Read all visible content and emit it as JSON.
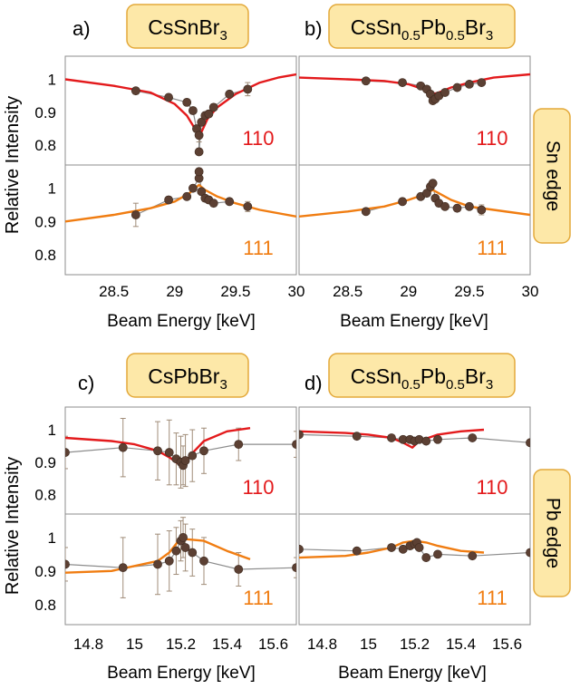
{
  "figure": {
    "ylabel": "Relative Intensity",
    "xlabel": "Beam Energy [keV]",
    "colors": {
      "series_110": "#e31a1c",
      "series_111": "#f07d12",
      "points": "#5c4033",
      "pointline": "#8c8c8c",
      "errbar": "#a08c78",
      "tagfill": "#fde8a8",
      "tagborder": "#e3a93a"
    },
    "side_tags": [
      {
        "text": "Sn edge"
      },
      {
        "text": "Pb edge"
      }
    ]
  },
  "chart_data": [
    {
      "type": "line",
      "panel": "a)",
      "title": {
        "base": "CsSn",
        "parts": [
          [
            "Br",
            "3"
          ]
        ]
      },
      "edge": "Sn edge",
      "xlim": [
        28.1,
        30
      ],
      "xticks": [
        "28.5",
        "29",
        "29.5",
        "30"
      ],
      "subplots": [
        {
          "reflection": "110",
          "ylim": [
            0.74,
            1.07
          ],
          "yticks": [
            "1",
            "0.9",
            "0.8"
          ],
          "points": [
            [
              28.68,
              0.965
            ],
            [
              28.95,
              0.945
            ],
            [
              29.1,
              0.93
            ],
            [
              29.15,
              0.905
            ],
            [
              29.18,
              0.85
            ],
            [
              29.2,
              0.83
            ],
            [
              29.2,
              0.78
            ],
            [
              29.22,
              0.87
            ],
            [
              29.25,
              0.89
            ],
            [
              29.28,
              0.895
            ],
            [
              29.32,
              0.915
            ],
            [
              29.45,
              0.955
            ],
            [
              29.6,
              0.97
            ]
          ],
          "errors": [
            0.01,
            0.01,
            0.01,
            0.01,
            0.01,
            0.02,
            0.01,
            0.01,
            0.01,
            0.01,
            0.01,
            0.01,
            0.02
          ],
          "curve": [
            [
              28.1,
              1.0
            ],
            [
              28.5,
              0.98
            ],
            [
              28.8,
              0.96
            ],
            [
              29.0,
              0.925
            ],
            [
              29.1,
              0.89
            ],
            [
              29.15,
              0.86
            ],
            [
              29.19,
              0.83
            ],
            [
              29.2,
              0.82
            ],
            [
              29.22,
              0.84
            ],
            [
              29.27,
              0.88
            ],
            [
              29.35,
              0.915
            ],
            [
              29.5,
              0.955
            ],
            [
              29.7,
              0.99
            ],
            [
              29.85,
              1.005
            ],
            [
              30.0,
              1.015
            ]
          ]
        },
        {
          "reflection": "111",
          "ylim": [
            0.74,
            1.07
          ],
          "yticks": [
            "1",
            "0.9",
            "0.8"
          ],
          "points": [
            [
              28.68,
              0.92
            ],
            [
              28.95,
              0.965
            ],
            [
              29.1,
              0.975
            ],
            [
              29.15,
              1.0
            ],
            [
              29.2,
              1.03
            ],
            [
              29.2,
              1.05
            ],
            [
              29.22,
              0.99
            ],
            [
              29.25,
              0.97
            ],
            [
              29.28,
              0.965
            ],
            [
              29.32,
              0.955
            ],
            [
              29.45,
              0.96
            ],
            [
              29.6,
              0.945
            ]
          ],
          "errors": [
            0.035,
            0.01,
            0.01,
            0.01,
            0.01,
            0.01,
            0.01,
            0.01,
            0.01,
            0.01,
            0.01,
            0.015
          ],
          "curve": [
            [
              28.1,
              0.9
            ],
            [
              28.5,
              0.92
            ],
            [
              28.8,
              0.94
            ],
            [
              29.0,
              0.96
            ],
            [
              29.12,
              0.985
            ],
            [
              29.2,
              1.01
            ],
            [
              29.25,
              0.995
            ],
            [
              29.35,
              0.975
            ],
            [
              29.5,
              0.955
            ],
            [
              29.7,
              0.935
            ],
            [
              30.0,
              0.915
            ]
          ]
        }
      ]
    },
    {
      "type": "line",
      "panel": "b)",
      "title": {
        "base": "CsSn",
        "parts": [
          [
            "",
            "0.5"
          ],
          [
            "Pb",
            "0.5"
          ],
          [
            "Br",
            "3"
          ]
        ]
      },
      "edge": "Sn edge",
      "xlim": [
        28.1,
        30
      ],
      "xticks": [
        "28.5",
        "29",
        "29.5",
        "30"
      ],
      "subplots": [
        {
          "reflection": "110",
          "ylim": [
            0.74,
            1.07
          ],
          "yticks": [],
          "points": [
            [
              28.65,
              0.995
            ],
            [
              28.95,
              0.99
            ],
            [
              29.1,
              0.98
            ],
            [
              29.15,
              0.97
            ],
            [
              29.18,
              0.955
            ],
            [
              29.2,
              0.935
            ],
            [
              29.22,
              0.94
            ],
            [
              29.25,
              0.95
            ],
            [
              29.3,
              0.96
            ],
            [
              29.4,
              0.975
            ],
            [
              29.5,
              0.985
            ],
            [
              29.6,
              0.99
            ]
          ],
          "errors": [
            0.005,
            0.005,
            0.005,
            0.005,
            0.005,
            0.005,
            0.005,
            0.005,
            0.005,
            0.005,
            0.005,
            0.005
          ],
          "curve": [
            [
              28.1,
              1.005
            ],
            [
              28.5,
              1.0
            ],
            [
              28.8,
              0.995
            ],
            [
              29.0,
              0.985
            ],
            [
              29.12,
              0.97
            ],
            [
              29.2,
              0.955
            ],
            [
              29.25,
              0.96
            ],
            [
              29.35,
              0.975
            ],
            [
              29.5,
              0.99
            ],
            [
              29.7,
              1.005
            ],
            [
              30.0,
              1.015
            ]
          ]
        },
        {
          "reflection": "111",
          "ylim": [
            0.74,
            1.07
          ],
          "yticks": [],
          "points": [
            [
              28.65,
              0.93
            ],
            [
              28.95,
              0.96
            ],
            [
              29.1,
              0.975
            ],
            [
              29.15,
              0.985
            ],
            [
              29.18,
              1.005
            ],
            [
              29.2,
              1.015
            ],
            [
              29.22,
              0.97
            ],
            [
              29.25,
              0.955
            ],
            [
              29.3,
              0.945
            ],
            [
              29.4,
              0.94
            ],
            [
              29.5,
              0.945
            ],
            [
              29.6,
              0.935
            ]
          ],
          "errors": [
            0.01,
            0.01,
            0.01,
            0.01,
            0.01,
            0.01,
            0.01,
            0.01,
            0.01,
            0.01,
            0.01,
            0.015
          ],
          "curve": [
            [
              28.1,
              0.915
            ],
            [
              28.5,
              0.93
            ],
            [
              28.8,
              0.945
            ],
            [
              29.0,
              0.965
            ],
            [
              29.12,
              0.98
            ],
            [
              29.2,
              0.995
            ],
            [
              29.25,
              0.985
            ],
            [
              29.35,
              0.965
            ],
            [
              29.5,
              0.945
            ],
            [
              29.7,
              0.935
            ],
            [
              30.0,
              0.92
            ]
          ]
        }
      ]
    },
    {
      "type": "line",
      "panel": "c)",
      "title": {
        "base": "CsPb",
        "parts": [
          [
            "Br",
            "3"
          ]
        ]
      },
      "edge": "Pb edge",
      "xlim": [
        14.7,
        15.7
      ],
      "xticks": [
        "14.8",
        "15",
        "15.2",
        "15.4",
        "15.6"
      ],
      "subplots": [
        {
          "reflection": "110",
          "ylim": [
            0.74,
            1.07
          ],
          "yticks": [
            "1",
            "0.9",
            "0.8"
          ],
          "points": [
            [
              14.7,
              0.93
            ],
            [
              14.95,
              0.945
            ],
            [
              15.1,
              0.935
            ],
            [
              15.15,
              0.93
            ],
            [
              15.18,
              0.91
            ],
            [
              15.2,
              0.9
            ],
            [
              15.21,
              0.89
            ],
            [
              15.22,
              0.905
            ],
            [
              15.25,
              0.92
            ],
            [
              15.3,
              0.935
            ],
            [
              15.45,
              0.955
            ],
            [
              15.7,
              0.955
            ]
          ],
          "errors": [
            0.05,
            0.09,
            0.09,
            0.1,
            0.08,
            0.08,
            0.06,
            0.08,
            0.08,
            0.07,
            0.05,
            0.04
          ],
          "curve": [
            [
              14.7,
              0.975
            ],
            [
              14.9,
              0.965
            ],
            [
              15.0,
              0.955
            ],
            [
              15.1,
              0.935
            ],
            [
              15.15,
              0.915
            ],
            [
              15.19,
              0.895
            ],
            [
              15.21,
              0.885
            ],
            [
              15.24,
              0.92
            ],
            [
              15.3,
              0.965
            ],
            [
              15.4,
              0.995
            ],
            [
              15.5,
              1.005
            ]
          ]
        },
        {
          "reflection": "111",
          "ylim": [
            0.74,
            1.07
          ],
          "yticks": [
            "1",
            "0.9",
            "0.8"
          ],
          "points": [
            [
              14.7,
              0.92
            ],
            [
              14.95,
              0.91
            ],
            [
              15.1,
              0.92
            ],
            [
              15.15,
              0.93
            ],
            [
              15.18,
              0.96
            ],
            [
              15.2,
              0.99
            ],
            [
              15.21,
              1.0
            ],
            [
              15.22,
              0.97
            ],
            [
              15.25,
              0.955
            ],
            [
              15.3,
              0.93
            ],
            [
              15.45,
              0.905
            ],
            [
              15.7,
              0.91
            ]
          ],
          "errors": [
            0.05,
            0.09,
            0.09,
            0.09,
            0.07,
            0.06,
            0.06,
            0.07,
            0.07,
            0.07,
            0.05,
            0.03
          ],
          "curve": [
            [
              14.7,
              0.895
            ],
            [
              14.9,
              0.9
            ],
            [
              15.0,
              0.915
            ],
            [
              15.1,
              0.93
            ],
            [
              15.15,
              0.955
            ],
            [
              15.19,
              0.99
            ],
            [
              15.22,
              0.995
            ],
            [
              15.3,
              0.99
            ],
            [
              15.4,
              0.96
            ],
            [
              15.5,
              0.935
            ]
          ]
        }
      ]
    },
    {
      "type": "line",
      "panel": "d)",
      "title": {
        "base": "CsSn",
        "parts": [
          [
            "",
            "0.5"
          ],
          [
            "Pb",
            "0.5"
          ],
          [
            "Br",
            "3"
          ]
        ]
      },
      "edge": "Pb edge",
      "xlim": [
        14.7,
        15.7
      ],
      "xticks": [
        "14.8",
        "15",
        "15.2",
        "15.4",
        "15.6"
      ],
      "subplots": [
        {
          "reflection": "110",
          "ylim": [
            0.74,
            1.07
          ],
          "yticks": [],
          "points": [
            [
              14.7,
              0.985
            ],
            [
              14.95,
              0.98
            ],
            [
              15.1,
              0.975
            ],
            [
              15.15,
              0.97
            ],
            [
              15.18,
              0.97
            ],
            [
              15.2,
              0.965
            ],
            [
              15.22,
              0.97
            ],
            [
              15.25,
              0.965
            ],
            [
              15.3,
              0.97
            ],
            [
              15.45,
              0.975
            ],
            [
              15.7,
              0.96
            ]
          ],
          "errors": [
            0.005,
            0.005,
            0.005,
            0.005,
            0.005,
            0.005,
            0.005,
            0.005,
            0.005,
            0.005,
            0.005
          ],
          "curve": [
            [
              14.7,
              0.995
            ],
            [
              14.9,
              0.99
            ],
            [
              15.0,
              0.985
            ],
            [
              15.1,
              0.975
            ],
            [
              15.15,
              0.96
            ],
            [
              15.19,
              0.945
            ],
            [
              15.22,
              0.965
            ],
            [
              15.3,
              0.985
            ],
            [
              15.4,
              0.995
            ],
            [
              15.5,
              1.0
            ]
          ]
        },
        {
          "reflection": "111",
          "ylim": [
            0.74,
            1.07
          ],
          "yticks": [],
          "points": [
            [
              14.7,
              0.965
            ],
            [
              14.95,
              0.96
            ],
            [
              15.1,
              0.97
            ],
            [
              15.15,
              0.965
            ],
            [
              15.18,
              0.975
            ],
            [
              15.2,
              0.98
            ],
            [
              15.21,
              0.985
            ],
            [
              15.22,
              0.97
            ],
            [
              15.25,
              0.94
            ],
            [
              15.3,
              0.95
            ],
            [
              15.45,
              0.945
            ],
            [
              15.7,
              0.955
            ]
          ],
          "errors": [
            0.005,
            0.005,
            0.005,
            0.005,
            0.005,
            0.005,
            0.005,
            0.005,
            0.005,
            0.005,
            0.005,
            0.005
          ],
          "curve": [
            [
              14.7,
              0.94
            ],
            [
              14.9,
              0.945
            ],
            [
              15.0,
              0.955
            ],
            [
              15.1,
              0.97
            ],
            [
              15.15,
              0.985
            ],
            [
              15.2,
              0.99
            ],
            [
              15.25,
              0.985
            ],
            [
              15.3,
              0.975
            ],
            [
              15.4,
              0.96
            ],
            [
              15.5,
              0.955
            ]
          ]
        }
      ]
    }
  ]
}
